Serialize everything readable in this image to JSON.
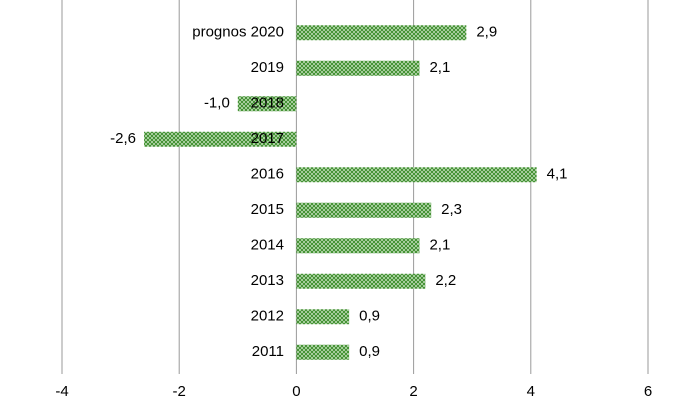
{
  "chart_data": {
    "type": "bar",
    "orientation": "horizontal",
    "categories": [
      "prognos 2020",
      "2019",
      "2018",
      "2017",
      "2016",
      "2015",
      "2014",
      "2013",
      "2012",
      "2011"
    ],
    "values": [
      2.9,
      2.1,
      -1.0,
      -2.6,
      4.1,
      2.3,
      2.1,
      2.2,
      0.9,
      0.9
    ],
    "value_labels": [
      "2,9",
      "2,1",
      "-1,0",
      "-2,6",
      "4,1",
      "2,3",
      "2,1",
      "2,2",
      "0,9",
      "0,9"
    ],
    "color": "#3f8f2f",
    "xlim": [
      -4,
      6
    ],
    "xticks": [
      -4,
      -2,
      0,
      2,
      4,
      6
    ],
    "grid": true
  }
}
